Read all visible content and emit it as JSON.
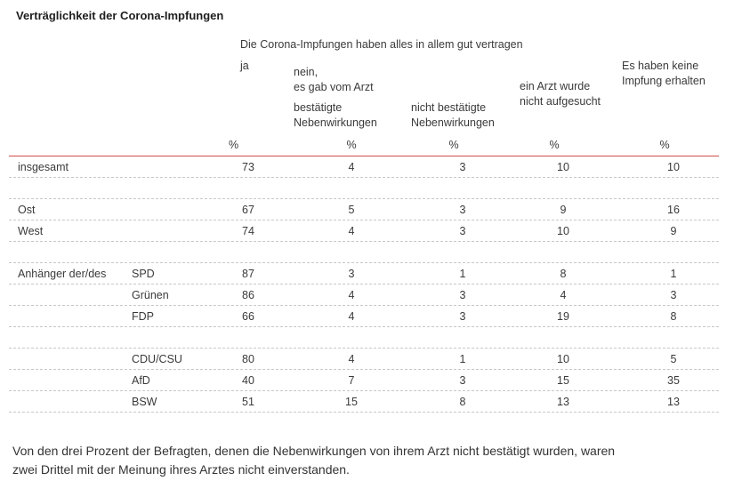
{
  "title": "Verträglichkeit der Corona-Impfungen",
  "header": {
    "group_title": "Die Corona-Impfungen haben alles in allem gut vertragen",
    "col_ja": "ja",
    "col_nein_line1": "nein,",
    "col_nein_line2": "es gab vom Arzt",
    "col_bestaetigt": [
      "bestätigte",
      "Nebenwirkungen"
    ],
    "col_nicht_bestaetigt": [
      "nicht bestätigte",
      "Nebenwirkungen"
    ],
    "col_arzt": [
      "ein Arzt wurde",
      "nicht aufgesucht"
    ],
    "col_keine": [
      "Es haben keine",
      "Impfung erhalten"
    ],
    "unit": "%"
  },
  "rows": [
    {
      "label": "insgesamt",
      "party": "",
      "values": [
        "73",
        "4",
        "3",
        "10",
        "10"
      ]
    },
    {
      "label": "",
      "party": "",
      "values": [
        "",
        "",
        "",
        "",
        ""
      ]
    },
    {
      "label": "Ost",
      "party": "",
      "values": [
        "67",
        "5",
        "3",
        "9",
        "16"
      ]
    },
    {
      "label": "West",
      "party": "",
      "values": [
        "74",
        "4",
        "3",
        "10",
        "9"
      ]
    },
    {
      "label": "",
      "party": "",
      "values": [
        "",
        "",
        "",
        "",
        ""
      ]
    },
    {
      "label": "Anhänger der/des",
      "party": "SPD",
      "values": [
        "87",
        "3",
        "1",
        "8",
        "1"
      ]
    },
    {
      "label": "",
      "party": "Grünen",
      "values": [
        "86",
        "4",
        "3",
        "4",
        "3"
      ]
    },
    {
      "label": "",
      "party": "FDP",
      "values": [
        "66",
        "4",
        "3",
        "19",
        "8"
      ]
    },
    {
      "label": "",
      "party": "",
      "values": [
        "",
        "",
        "",
        "",
        ""
      ]
    },
    {
      "label": "",
      "party": "CDU/CSU",
      "values": [
        "80",
        "4",
        "1",
        "10",
        "5"
      ]
    },
    {
      "label": "",
      "party": "AfD",
      "values": [
        "40",
        "7",
        "3",
        "15",
        "35"
      ]
    },
    {
      "label": "",
      "party": "BSW",
      "values": [
        "51",
        "15",
        "8",
        "13",
        "13"
      ]
    }
  ],
  "footnote": "Von den drei Prozent der Befragten, denen die Nebenwirkungen von ihrem Arzt nicht bestätigt wurden, waren zwei Drittel mit der Meinung ihres Arztes nicht einverstanden."
}
